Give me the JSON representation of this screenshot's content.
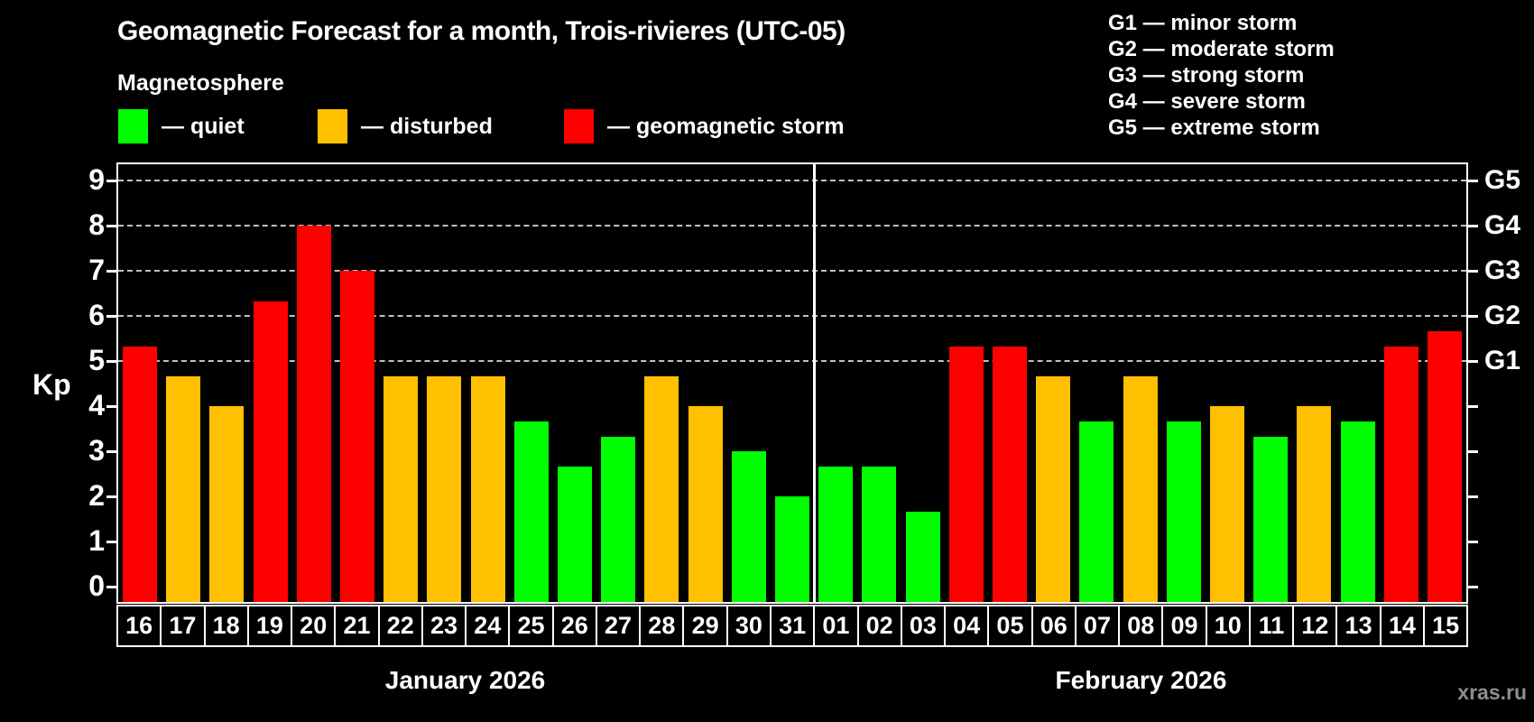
{
  "title": "Geomagnetic Forecast for a month, Trois-rivieres (UTC-05)",
  "subtitle": "Magnetosphere",
  "legend": {
    "items": [
      {
        "key": "quiet",
        "label": "— quiet",
        "color": "#00ff00"
      },
      {
        "key": "disturbed",
        "label": "— disturbed",
        "color": "#ffc000"
      },
      {
        "key": "storm",
        "label": "— geomagnetic storm",
        "color": "#ff0000"
      }
    ]
  },
  "g_scale_legend": [
    "G1 — minor storm",
    "G2 — moderate storm",
    "G3 — strong storm",
    "G4 — severe storm",
    "G5 — extreme storm"
  ],
  "watermark": "xras.ru",
  "chart_data": {
    "type": "bar",
    "ylabel": "Kp",
    "ylim": [
      -0.34,
      9.36
    ],
    "y_ticks": [
      0,
      1,
      2,
      3,
      4,
      5,
      6,
      7,
      8,
      9
    ],
    "gridlines_at": [
      5,
      6,
      7,
      8,
      9
    ],
    "grid_style": "dashed horizontal lines at storm levels only",
    "right_axis_labels": [
      {
        "label": "G1",
        "kp": 5
      },
      {
        "label": "G2",
        "kp": 6
      },
      {
        "label": "G3",
        "kp": 7
      },
      {
        "label": "G4",
        "kp": 8
      },
      {
        "label": "G5",
        "kp": 9
      }
    ],
    "series_colors": {
      "quiet": "#00ff00",
      "disturbed": "#ffc000",
      "storm": "#ff0000"
    },
    "months": [
      {
        "label": "January 2026",
        "days": [
          "16",
          "17",
          "18",
          "19",
          "20",
          "21",
          "22",
          "23",
          "24",
          "25",
          "26",
          "27",
          "28",
          "29",
          "30",
          "31"
        ]
      },
      {
        "label": "February 2026",
        "days": [
          "01",
          "02",
          "03",
          "04",
          "05",
          "06",
          "07",
          "08",
          "09",
          "10",
          "11",
          "12",
          "13",
          "14",
          "15"
        ]
      }
    ],
    "bars": [
      {
        "month": "January",
        "day": "16",
        "kp": 5.33,
        "status": "storm"
      },
      {
        "month": "January",
        "day": "17",
        "kp": 4.67,
        "status": "disturbed"
      },
      {
        "month": "January",
        "day": "18",
        "kp": 4.0,
        "status": "disturbed"
      },
      {
        "month": "January",
        "day": "19",
        "kp": 6.33,
        "status": "storm"
      },
      {
        "month": "January",
        "day": "20",
        "kp": 8.0,
        "status": "storm"
      },
      {
        "month": "January",
        "day": "21",
        "kp": 7.0,
        "status": "storm"
      },
      {
        "month": "January",
        "day": "22",
        "kp": 4.67,
        "status": "disturbed"
      },
      {
        "month": "January",
        "day": "23",
        "kp": 4.67,
        "status": "disturbed"
      },
      {
        "month": "January",
        "day": "24",
        "kp": 4.67,
        "status": "disturbed"
      },
      {
        "month": "January",
        "day": "25",
        "kp": 3.67,
        "status": "quiet"
      },
      {
        "month": "January",
        "day": "26",
        "kp": 2.67,
        "status": "quiet"
      },
      {
        "month": "January",
        "day": "27",
        "kp": 3.33,
        "status": "quiet"
      },
      {
        "month": "January",
        "day": "28",
        "kp": 4.67,
        "status": "disturbed"
      },
      {
        "month": "January",
        "day": "29",
        "kp": 4.0,
        "status": "disturbed"
      },
      {
        "month": "January",
        "day": "30",
        "kp": 3.0,
        "status": "quiet"
      },
      {
        "month": "January",
        "day": "31",
        "kp": 2.0,
        "status": "quiet"
      },
      {
        "month": "February",
        "day": "01",
        "kp": 2.67,
        "status": "quiet"
      },
      {
        "month": "February",
        "day": "02",
        "kp": 2.67,
        "status": "quiet"
      },
      {
        "month": "February",
        "day": "03",
        "kp": 1.67,
        "status": "quiet"
      },
      {
        "month": "February",
        "day": "04",
        "kp": 5.33,
        "status": "storm"
      },
      {
        "month": "February",
        "day": "05",
        "kp": 5.33,
        "status": "storm"
      },
      {
        "month": "February",
        "day": "06",
        "kp": 4.67,
        "status": "disturbed"
      },
      {
        "month": "February",
        "day": "07",
        "kp": 3.67,
        "status": "quiet"
      },
      {
        "month": "February",
        "day": "08",
        "kp": 4.67,
        "status": "disturbed"
      },
      {
        "month": "February",
        "day": "09",
        "kp": 3.67,
        "status": "quiet"
      },
      {
        "month": "February",
        "day": "10",
        "kp": 4.0,
        "status": "disturbed"
      },
      {
        "month": "February",
        "day": "11",
        "kp": 3.33,
        "status": "quiet"
      },
      {
        "month": "February",
        "day": "12",
        "kp": 4.0,
        "status": "disturbed"
      },
      {
        "month": "February",
        "day": "13",
        "kp": 3.67,
        "status": "quiet"
      },
      {
        "month": "February",
        "day": "14",
        "kp": 5.33,
        "status": "storm"
      },
      {
        "month": "February",
        "day": "15",
        "kp": 5.67,
        "status": "storm"
      }
    ]
  }
}
